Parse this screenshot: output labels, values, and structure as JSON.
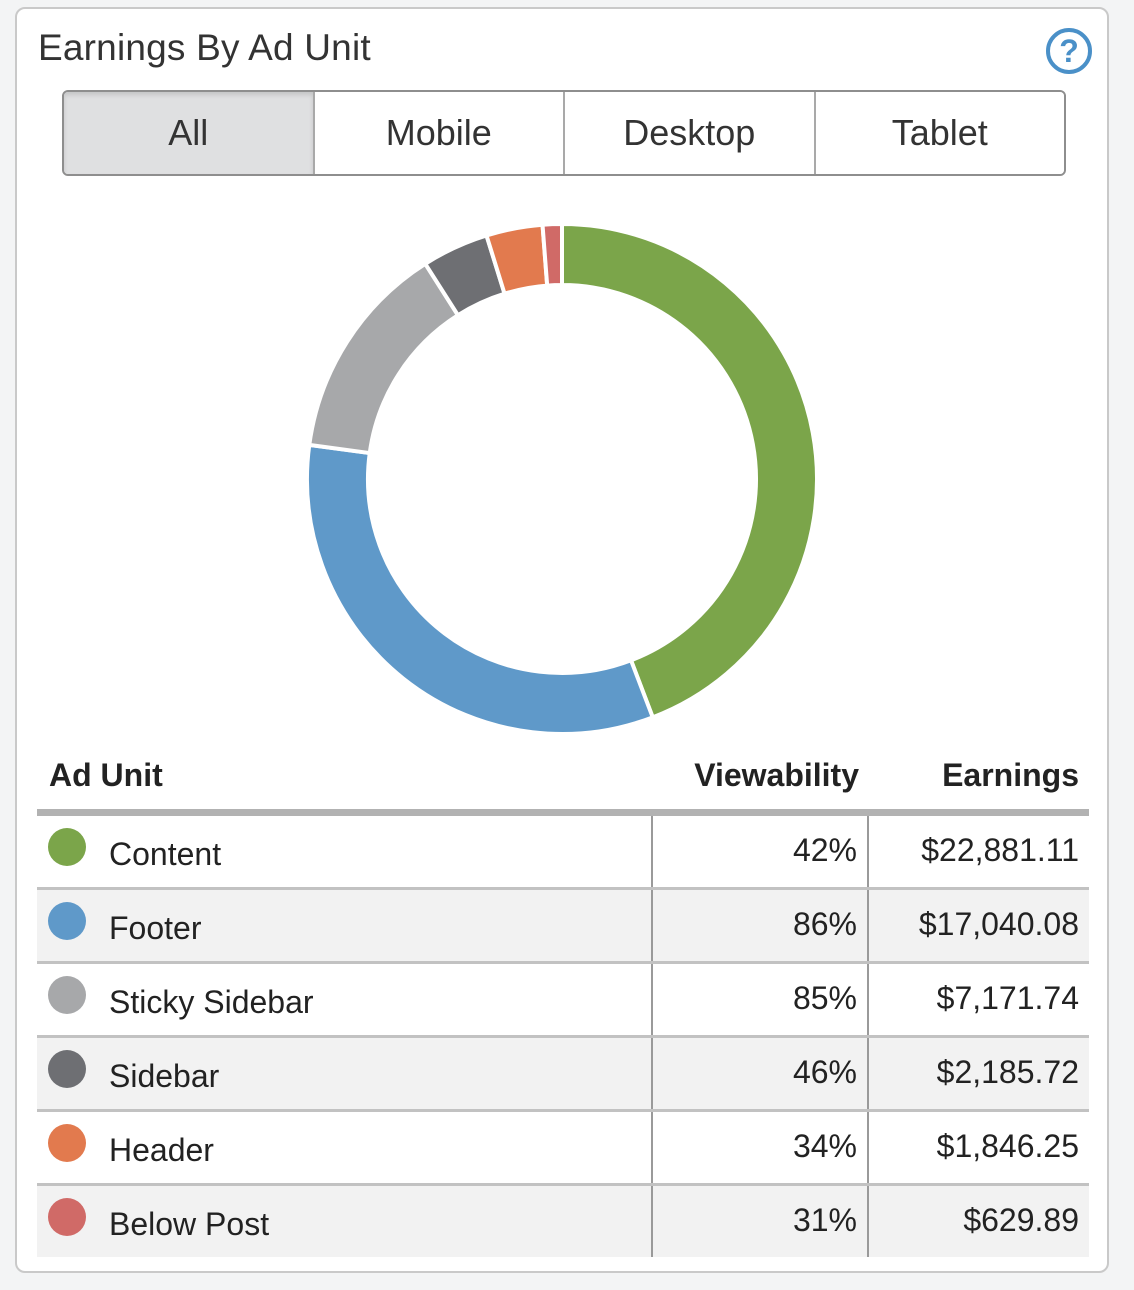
{
  "widget": {
    "title": "Earnings By Ad Unit",
    "help_icon": "question-circle-icon",
    "help_symbol": "?"
  },
  "tabs": [
    {
      "label": "All",
      "active": true
    },
    {
      "label": "Mobile",
      "active": false
    },
    {
      "label": "Desktop",
      "active": false
    },
    {
      "label": "Tablet",
      "active": false
    }
  ],
  "table": {
    "headers": {
      "ad_unit": "Ad Unit",
      "viewability": "Viewability",
      "earnings": "Earnings"
    },
    "rows": [
      {
        "name": "Content",
        "viewability": "42%",
        "earnings": "$22,881.11",
        "color": "#7ba54a"
      },
      {
        "name": "Footer",
        "viewability": "86%",
        "earnings": "$17,040.08",
        "color": "#5f99c9"
      },
      {
        "name": "Sticky Sidebar",
        "viewability": "85%",
        "earnings": "$7,171.74",
        "color": "#a7a8aa"
      },
      {
        "name": "Sidebar",
        "viewability": "46%",
        "earnings": "$2,185.72",
        "color": "#6e6f73"
      },
      {
        "name": "Header",
        "viewability": "34%",
        "earnings": "$1,846.25",
        "color": "#e27a4e"
      },
      {
        "name": "Below Post",
        "viewability": "31%",
        "earnings": "$629.89",
        "color": "#d06a67"
      }
    ]
  },
  "chart_data": {
    "type": "pie",
    "variant": "donut",
    "categories": [
      "Content",
      "Footer",
      "Sticky Sidebar",
      "Sidebar",
      "Header",
      "Below Post"
    ],
    "values": [
      22881.11,
      17040.08,
      7171.74,
      2185.72,
      1846.25,
      629.89
    ],
    "colors": [
      "#7ba54a",
      "#5f99c9",
      "#a7a8aa",
      "#6e6f73",
      "#e27a4e",
      "#d06a67"
    ],
    "start": "12 o'clock",
    "direction": "clockwise"
  }
}
